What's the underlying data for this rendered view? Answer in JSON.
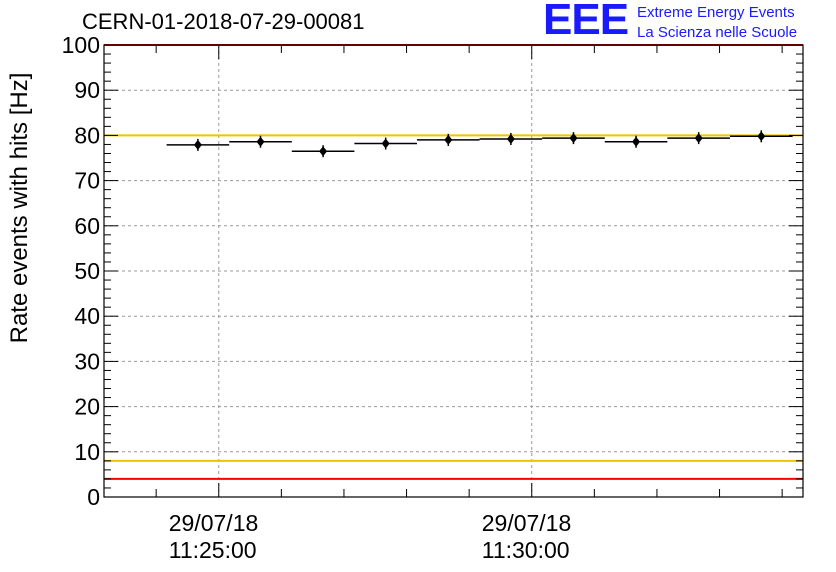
{
  "header": {
    "run_title": "CERN-01-2018-07-29-00081",
    "logo_text": "EEE",
    "logo_line1": "Extreme Energy Events",
    "logo_line2": "La Scienza nelle Scuole"
  },
  "colors": {
    "logo": "#1a1aff",
    "limit_red": "#ff0000",
    "limit_yellow": "#f2c200",
    "markers": "#000000",
    "grid": "#999999"
  },
  "chart_data": {
    "type": "scatter",
    "title": "CERN-01-2018-07-29-00081",
    "ylabel": "Rate events with hits [Hz]",
    "xlabel": "",
    "ylim": [
      0,
      100
    ],
    "y_ticks": [
      0,
      10,
      20,
      30,
      40,
      50,
      60,
      70,
      80,
      90,
      100
    ],
    "x_ticks": [
      {
        "time": "11:25:00",
        "label_date": "29/07/18",
        "label_time": "11:25:00"
      },
      {
        "time": "11:30:00",
        "label_date": "29/07/18",
        "label_time": "11:30:00"
      }
    ],
    "x_range": [
      "11:23:10",
      "11:34:20"
    ],
    "grid": true,
    "bin_width_seconds": 60,
    "points": [
      {
        "x": "11:24:40",
        "y": 77.9
      },
      {
        "x": "11:25:40",
        "y": 78.6
      },
      {
        "x": "11:26:40",
        "y": 76.5
      },
      {
        "x": "11:27:40",
        "y": 78.2
      },
      {
        "x": "11:28:40",
        "y": 79.0
      },
      {
        "x": "11:29:40",
        "y": 79.2
      },
      {
        "x": "11:30:40",
        "y": 79.4
      },
      {
        "x": "11:31:40",
        "y": 78.6
      },
      {
        "x": "11:32:40",
        "y": 79.4
      },
      {
        "x": "11:33:40",
        "y": 79.8
      }
    ],
    "reference_lines": [
      {
        "y": 100,
        "color": "#ff0000"
      },
      {
        "y": 80,
        "color": "#f2c200"
      },
      {
        "y": 8,
        "color": "#f2c200"
      },
      {
        "y": 4,
        "color": "#ff0000"
      }
    ]
  }
}
